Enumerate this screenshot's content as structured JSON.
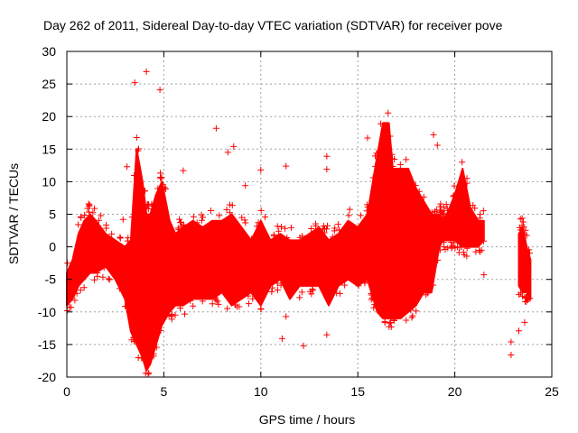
{
  "chart_data": {
    "type": "scatter",
    "title": "Day 262 of 2011, Sidereal Day-to-day VTEC variation (SDTVAR) for receiver pove",
    "xlabel": "GPS time / hours",
    "ylabel": "SDTVAR / TECUs",
    "xlim": [
      0,
      25
    ],
    "ylim": [
      -20,
      30
    ],
    "x_ticks": [
      "0",
      "5",
      "10",
      "15",
      "20",
      "25"
    ],
    "y_ticks": [
      "-20",
      "-15",
      "-10",
      "-5",
      "0",
      "5",
      "10",
      "15",
      "20",
      "25",
      "30"
    ],
    "grid": true,
    "marker": "+",
    "color": "#ff0000",
    "series": [
      {
        "name": "SDTVAR",
        "envelope": {
          "x": [
            0,
            0.3,
            0.6,
            0.9,
            1.2,
            1.5,
            2.0,
            2.5,
            3.0,
            3.3,
            3.6,
            3.9,
            4.1,
            4.3,
            4.6,
            4.9,
            5.3,
            5.6,
            6.0,
            6.5,
            7.0,
            7.5,
            8.0,
            8.5,
            9.0,
            9.5,
            10.0,
            10.5,
            11.0,
            11.5,
            12.0,
            12.5,
            13.0,
            13.5,
            14.0,
            14.5,
            15.0,
            15.5,
            16.0,
            16.3,
            16.6,
            16.8,
            17.2,
            17.6,
            18.0,
            18.4,
            18.8,
            19.2,
            19.4,
            19.6,
            20.0,
            20.4,
            20.8,
            21.2,
            21.5
          ],
          "upper": [
            -4,
            -2,
            2,
            4,
            5,
            4,
            2,
            1,
            0,
            1,
            15,
            10,
            5,
            5,
            8,
            10,
            4,
            2,
            3,
            4,
            3,
            4,
            4,
            5,
            3,
            1,
            4,
            1,
            2,
            1,
            1,
            2,
            3,
            1,
            2,
            4,
            3,
            5,
            14,
            19,
            19,
            12,
            12,
            12,
            9,
            7,
            5,
            5,
            4,
            5,
            8,
            12,
            6,
            4,
            4
          ],
          "lower": [
            -9,
            -8,
            -6,
            -5,
            -4,
            -4,
            -3,
            -5,
            -8,
            -13,
            -15,
            -17,
            -19,
            -18,
            -15,
            -12,
            -10,
            -9,
            -9,
            -8,
            -8,
            -8,
            -7,
            -9,
            -8,
            -7,
            -9,
            -6,
            -5,
            -8,
            -6,
            -6,
            -6,
            -9,
            -6,
            -5,
            -6,
            -5,
            -10,
            -11,
            -11,
            -11,
            -11,
            -10,
            -9,
            -7,
            -7,
            0,
            1,
            1,
            1,
            0,
            0,
            0,
            1
          ]
        },
        "late_segment": {
          "x": [
            23.3,
            23.5,
            23.7,
            23.9
          ],
          "upper": [
            2,
            3,
            0,
            -2
          ],
          "lower": [
            -6,
            -7,
            -7,
            -8
          ]
        },
        "outliers": [
          {
            "x": 3.5,
            "y": 25.2
          },
          {
            "x": 4.1,
            "y": 26.9
          },
          {
            "x": 4.8,
            "y": 24.1
          },
          {
            "x": 3.1,
            "y": 12.3
          },
          {
            "x": 7.7,
            "y": 18.2
          },
          {
            "x": 8.6,
            "y": 15.4
          },
          {
            "x": 8.3,
            "y": 14.5
          },
          {
            "x": 13.4,
            "y": 13.9
          },
          {
            "x": 13.4,
            "y": 11.9
          },
          {
            "x": 11.3,
            "y": 12.4
          },
          {
            "x": 11.1,
            "y": -14.1
          },
          {
            "x": 12.2,
            "y": -15.2
          },
          {
            "x": 13.4,
            "y": -13.5
          },
          {
            "x": 15.5,
            "y": 16.7
          },
          {
            "x": 18.9,
            "y": 17.2
          },
          {
            "x": 19.1,
            "y": 15.6
          },
          {
            "x": 21.5,
            "y": -4.3
          },
          {
            "x": 22.9,
            "y": -14.6
          },
          {
            "x": 22.9,
            "y": -16.6
          },
          {
            "x": 23.3,
            "y": -12.9
          },
          {
            "x": 23.6,
            "y": -11.6
          },
          {
            "x": 6.0,
            "y": 11.7
          },
          {
            "x": 9.2,
            "y": 9.4
          },
          {
            "x": 10.0,
            "y": 11.8
          },
          {
            "x": 14.3,
            "y": 1.2
          },
          {
            "x": 15.7,
            "y": -7.4
          },
          {
            "x": 2.9,
            "y": 4.2
          },
          {
            "x": 3.0,
            "y": -4.1
          },
          {
            "x": 11.3,
            "y": -10.7
          },
          {
            "x": 12.0,
            "y": -7.8
          }
        ]
      }
    ]
  }
}
